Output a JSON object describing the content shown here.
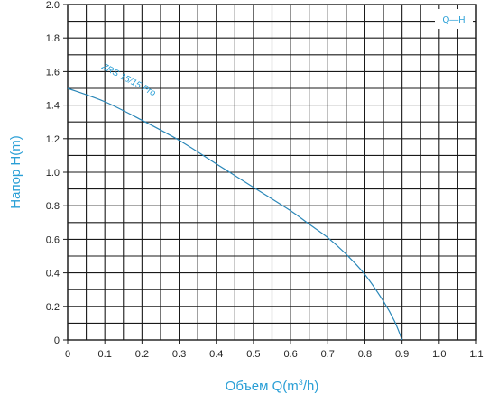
{
  "chart_data": {
    "type": "line",
    "xlabel_main": "Объем ",
    "xlabel_unit_start": "Q(m",
    "xlabel_unit_sup": "3",
    "xlabel_unit_end": "/h)",
    "ylabel": "Напор H(m)",
    "xlim": [
      0,
      1.1
    ],
    "ylim": [
      0,
      2.0
    ],
    "x_ticks": [
      "0",
      "0.1",
      "0.2",
      "0.3",
      "0.4",
      "0.5",
      "0.6",
      "0.7",
      "0.8",
      "0.9",
      "1.0",
      "1.1"
    ],
    "y_ticks": [
      "0",
      "0.2",
      "0.4",
      "0.6",
      "0.8",
      "1.0",
      "1.2",
      "1.4",
      "1.6",
      "1.8",
      "2.0"
    ],
    "grid": true,
    "legend": {
      "text": "Q—H",
      "placement": "top-right"
    },
    "series": [
      {
        "name": "ZRS 15/15 Pro",
        "color": "#2a87b8",
        "x": [
          0,
          0.1,
          0.2,
          0.3,
          0.4,
          0.5,
          0.6,
          0.65,
          0.7,
          0.75,
          0.8,
          0.85,
          0.88,
          0.9
        ],
        "y": [
          1.5,
          1.42,
          1.31,
          1.19,
          1.05,
          0.91,
          0.77,
          0.69,
          0.61,
          0.51,
          0.39,
          0.23,
          0.11,
          0.0
        ]
      }
    ]
  }
}
